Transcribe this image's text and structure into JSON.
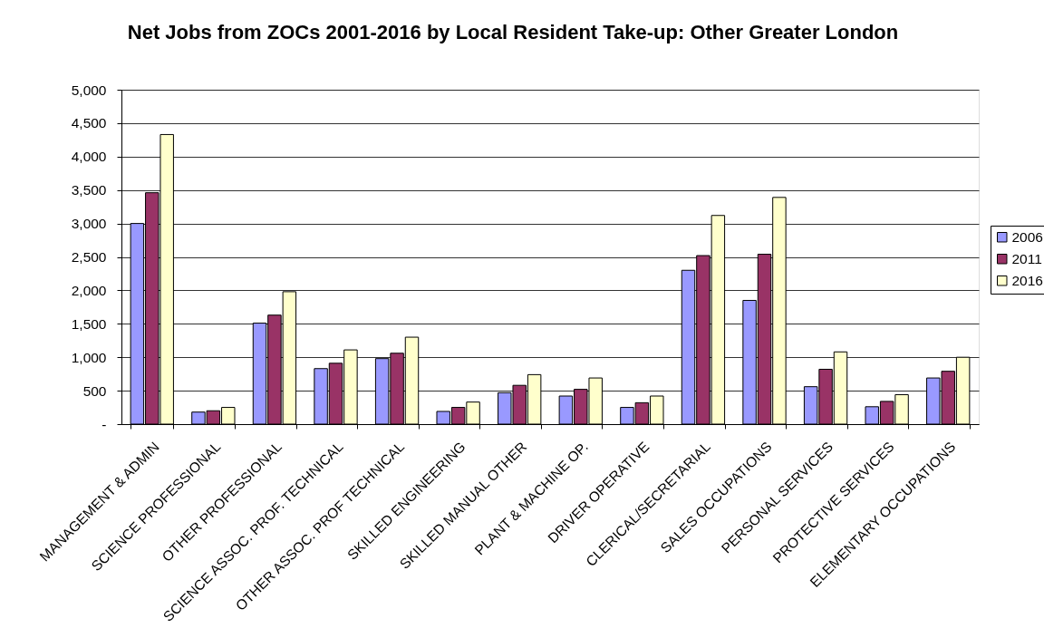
{
  "chart_data": {
    "type": "bar",
    "title": "Net Jobs from ZOCs 2001-2016 by Local Resident Take-up: Other Greater London",
    "categories": [
      "MANAGEMENT & ADMIN",
      "SCIENCE PROFESSIONAL",
      "OTHER PROFESSIONAL",
      "SCIENCE ASSOC. PROF. TECHNICAL",
      "OTHER ASSOC. PROF TECHNICAL",
      "SKILLED ENGINEERING",
      "SKILLED MANUAL OTHER",
      "PLANT & MACHINE OP.",
      "DRIVER OPERATIVE",
      "CLERICAL/SECRETARIAL",
      "SALES OCCUPATIONS",
      "PERSONAL SERVICES",
      "PROTECTIVE SERVICES",
      "ELEMENTARY OCCUPATIONS"
    ],
    "series": [
      {
        "name": "2006",
        "color": "#9999ff",
        "values": [
          3000,
          180,
          1510,
          830,
          980,
          190,
          470,
          420,
          250,
          2300,
          1850,
          560,
          260,
          690
        ]
      },
      {
        "name": "2011",
        "color": "#993366",
        "values": [
          3460,
          200,
          1630,
          910,
          1060,
          250,
          580,
          520,
          320,
          2520,
          2540,
          820,
          340,
          790
        ]
      },
      {
        "name": "2016",
        "color": "#ffffcc",
        "values": [
          4330,
          250,
          1980,
          1110,
          1300,
          330,
          740,
          690,
          420,
          3120,
          3390,
          1080,
          440,
          1000
        ]
      }
    ],
    "ylim": [
      0,
      5000
    ],
    "yticks": [
      {
        "value": 0,
        "label": "-"
      },
      500,
      {
        "value": 1000,
        "label": "1,000"
      },
      {
        "value": 1500,
        "label": "1,500"
      },
      {
        "value": 2000,
        "label": "2,000"
      },
      {
        "value": 2500,
        "label": "2,500"
      },
      {
        "value": 3000,
        "label": "3,000"
      },
      {
        "value": 3500,
        "label": "3,500"
      },
      {
        "value": 4000,
        "label": "4,000"
      },
      {
        "value": 4500,
        "label": "4,500"
      },
      {
        "value": 5000,
        "label": "5,000"
      }
    ],
    "grid": "y",
    "legend": "right"
  }
}
